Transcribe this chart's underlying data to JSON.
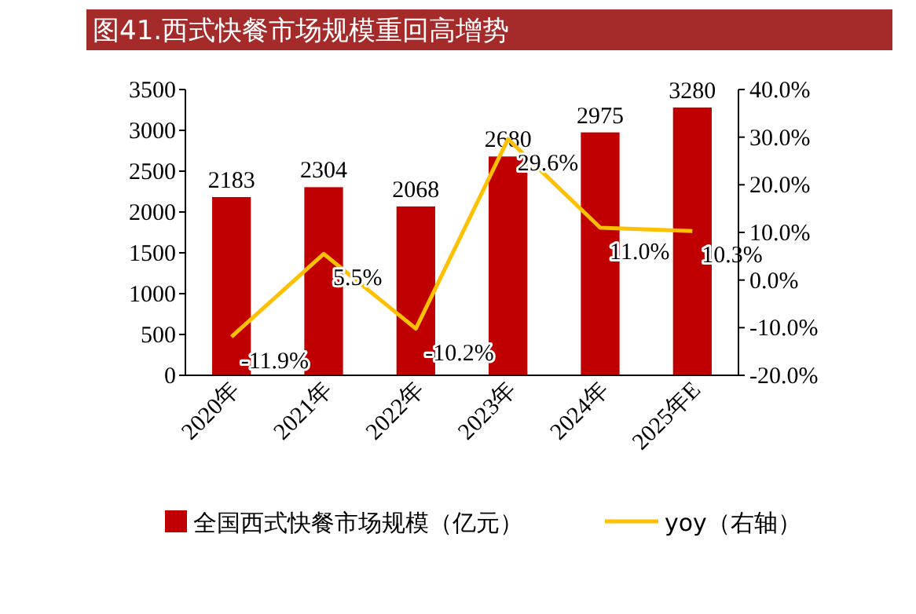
{
  "chart_data": {
    "type": "bar",
    "title": "图41.西式快餐市场规模重回高增势",
    "categories": [
      "2020年",
      "2021年",
      "2022年",
      "2023年",
      "2024年",
      "2025年E"
    ],
    "series": [
      {
        "name": "全国西式快餐市场规模（亿元）",
        "color": "#c00000",
        "values": [
          2183,
          2304,
          2068,
          2680,
          2975,
          3280
        ]
      },
      {
        "name": "yoy（右轴）",
        "type": "line",
        "axis": "y2",
        "color": "#ffc000",
        "values": [
          -11.9,
          5.5,
          -10.2,
          29.6,
          11.0,
          10.3
        ],
        "value_labels": [
          "-11.9%",
          "5.5%",
          "-10.2%",
          "29.6%",
          "11.0%",
          "10.3%"
        ]
      }
    ],
    "data_labels": true,
    "ylim": [
      0,
      3500
    ],
    "yticks": [
      0,
      500,
      1000,
      1500,
      2000,
      2500,
      3000,
      3500
    ],
    "y2lim": [
      -20,
      40
    ],
    "y2ticks": [
      {
        "value": -20,
        "label": "-20.0%"
      },
      {
        "value": -10,
        "label": "-10.0%"
      },
      {
        "value": 0,
        "label": "0.0%"
      },
      {
        "value": 10,
        "label": "10.0%"
      },
      {
        "value": 20,
        "label": "20.0%"
      },
      {
        "value": 30,
        "label": "30.0%"
      },
      {
        "value": 40,
        "label": "40.0%"
      }
    ],
    "legend": "bottom",
    "grid": false,
    "marker": "none"
  }
}
